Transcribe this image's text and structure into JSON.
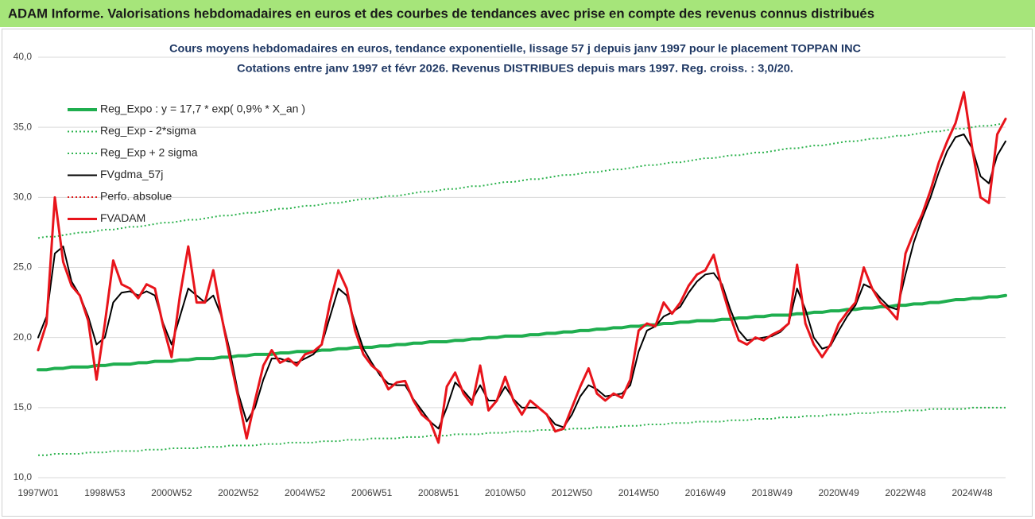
{
  "chart_data": {
    "type": "line",
    "title": "ADAM Informe. Valorisations hebdomadaires en euros et des courbes de tendances avec prise en compte des revenus connus distribués",
    "subtitle": [
      "Cours moyens hebdomadaires en euros, tendance exponentielle, lissage 57 j depuis janv 1997 pour le placement TOPPAN INC",
      "Cotations entre janv 1997 et févr 2026. Revenus DISTRIBUES depuis mars 1997. Reg. croiss. : 3,0/20."
    ],
    "categories": [
      "1997W01",
      null,
      null,
      null,
      null,
      null,
      null,
      null,
      "1998W53",
      null,
      null,
      null,
      null,
      null,
      null,
      null,
      "2000W52",
      null,
      null,
      null,
      null,
      null,
      null,
      null,
      "2002W52",
      null,
      null,
      null,
      null,
      null,
      null,
      null,
      "2004W52",
      null,
      null,
      null,
      null,
      null,
      null,
      null,
      "2006W51",
      null,
      null,
      null,
      null,
      null,
      null,
      null,
      "2008W51",
      null,
      null,
      null,
      null,
      null,
      null,
      null,
      "2010W50",
      null,
      null,
      null,
      null,
      null,
      null,
      null,
      "2012W50",
      null,
      null,
      null,
      null,
      null,
      null,
      null,
      "2014W50",
      null,
      null,
      null,
      null,
      null,
      null,
      null,
      "2016W49",
      null,
      null,
      null,
      null,
      null,
      null,
      null,
      "2018W49",
      null,
      null,
      null,
      null,
      null,
      null,
      null,
      "2020W49",
      null,
      null,
      null,
      null,
      null,
      null,
      null,
      "2022W48",
      null,
      null,
      null,
      null,
      null,
      null,
      null,
      "2024W48",
      null,
      null,
      null,
      null
    ],
    "ylim": [
      10,
      40
    ],
    "yticks": [
      {
        "value": 10,
        "label": "10,0"
      },
      {
        "value": 15,
        "label": "15,0"
      },
      {
        "value": 20,
        "label": "20,0"
      },
      {
        "value": 25,
        "label": "25,0"
      },
      {
        "value": 30,
        "label": "30,0"
      },
      {
        "value": 35,
        "label": "35,0"
      },
      {
        "value": 40,
        "label": "40,0"
      }
    ],
    "grid": true,
    "legend": "upper left",
    "series": [
      {
        "name": "Reg_Expo : y = 17,7 * exp( 0,9% *  X_an )",
        "color": "#1fae4f",
        "dash": "solid",
        "width": 4,
        "values": [
          17.7,
          17.7,
          17.8,
          17.8,
          17.9,
          17.9,
          17.9,
          18.0,
          18.0,
          18.1,
          18.1,
          18.1,
          18.2,
          18.2,
          18.3,
          18.3,
          18.3,
          18.4,
          18.4,
          18.5,
          18.5,
          18.5,
          18.6,
          18.6,
          18.7,
          18.7,
          18.8,
          18.8,
          18.8,
          18.9,
          18.9,
          19.0,
          19.0,
          19.0,
          19.1,
          19.1,
          19.2,
          19.2,
          19.3,
          19.3,
          19.3,
          19.4,
          19.4,
          19.5,
          19.5,
          19.6,
          19.6,
          19.7,
          19.7,
          19.7,
          19.8,
          19.8,
          19.9,
          19.9,
          20.0,
          20.0,
          20.1,
          20.1,
          20.1,
          20.2,
          20.2,
          20.3,
          20.3,
          20.4,
          20.4,
          20.5,
          20.5,
          20.6,
          20.6,
          20.7,
          20.7,
          20.8,
          20.8,
          20.9,
          20.9,
          21.0,
          21.0,
          21.1,
          21.1,
          21.2,
          21.2,
          21.2,
          21.3,
          21.3,
          21.4,
          21.4,
          21.5,
          21.5,
          21.6,
          21.6,
          21.6,
          21.7,
          21.7,
          21.8,
          21.8,
          21.9,
          21.9,
          22.0,
          22.0,
          22.1,
          22.1,
          22.2,
          22.2,
          22.3,
          22.3,
          22.4,
          22.4,
          22.5,
          22.5,
          22.6,
          22.7,
          22.7,
          22.8,
          22.8,
          22.9,
          22.9,
          23.0
        ]
      },
      {
        "name": "Reg_Exp - 2*sigma",
        "color": "#2eb34f",
        "dash": "dotted",
        "width": 2,
        "values": [
          11.6,
          11.6,
          11.7,
          11.7,
          11.7,
          11.7,
          11.8,
          11.8,
          11.8,
          11.9,
          11.9,
          11.9,
          11.9,
          12.0,
          12.0,
          12.0,
          12.1,
          12.1,
          12.1,
          12.1,
          12.2,
          12.2,
          12.2,
          12.3,
          12.3,
          12.3,
          12.3,
          12.4,
          12.4,
          12.4,
          12.5,
          12.5,
          12.5,
          12.5,
          12.6,
          12.6,
          12.6,
          12.7,
          12.7,
          12.7,
          12.8,
          12.8,
          12.8,
          12.8,
          12.9,
          12.9,
          12.9,
          13.0,
          13.0,
          13.0,
          13.1,
          13.1,
          13.1,
          13.1,
          13.2,
          13.2,
          13.2,
          13.3,
          13.3,
          13.3,
          13.4,
          13.4,
          13.4,
          13.4,
          13.5,
          13.5,
          13.5,
          13.6,
          13.6,
          13.6,
          13.7,
          13.7,
          13.7,
          13.8,
          13.8,
          13.8,
          13.9,
          13.9,
          13.9,
          14.0,
          14.0,
          14.0,
          14.0,
          14.1,
          14.1,
          14.1,
          14.2,
          14.2,
          14.2,
          14.3,
          14.3,
          14.3,
          14.4,
          14.4,
          14.4,
          14.5,
          14.5,
          14.5,
          14.6,
          14.6,
          14.6,
          14.7,
          14.7,
          14.7,
          14.8,
          14.8,
          14.8,
          14.9,
          14.9,
          14.9,
          14.9,
          14.9,
          15.0,
          15.0,
          15.0,
          15.0,
          15.0
        ]
      },
      {
        "name": "Reg_Exp + 2 sigma",
        "color": "#2eb34f",
        "dash": "dotted",
        "width": 2,
        "values": [
          27.1,
          27.2,
          27.2,
          27.3,
          27.4,
          27.5,
          27.5,
          27.6,
          27.7,
          27.7,
          27.8,
          27.9,
          27.9,
          28.0,
          28.1,
          28.2,
          28.2,
          28.3,
          28.4,
          28.4,
          28.5,
          28.6,
          28.7,
          28.7,
          28.8,
          28.9,
          28.9,
          29.0,
          29.1,
          29.2,
          29.2,
          29.3,
          29.4,
          29.4,
          29.5,
          29.6,
          29.6,
          29.7,
          29.8,
          29.9,
          29.9,
          30.0,
          30.1,
          30.1,
          30.2,
          30.3,
          30.4,
          30.4,
          30.5,
          30.6,
          30.6,
          30.7,
          30.8,
          30.8,
          30.9,
          31.0,
          31.1,
          31.1,
          31.2,
          31.3,
          31.3,
          31.4,
          31.5,
          31.6,
          31.6,
          31.7,
          31.8,
          31.8,
          31.9,
          32.0,
          32.0,
          32.1,
          32.2,
          32.3,
          32.3,
          32.4,
          32.5,
          32.5,
          32.6,
          32.7,
          32.8,
          32.8,
          32.9,
          33.0,
          33.0,
          33.1,
          33.2,
          33.2,
          33.3,
          33.4,
          33.5,
          33.5,
          33.6,
          33.7,
          33.7,
          33.8,
          33.9,
          34.0,
          34.0,
          34.1,
          34.2,
          34.2,
          34.3,
          34.4,
          34.4,
          34.5,
          34.6,
          34.7,
          34.7,
          34.8,
          34.9,
          34.9,
          35.0,
          35.1,
          35.1,
          35.2,
          35.3
        ]
      },
      {
        "name": "FVgdma_57j",
        "color": "#000000",
        "dash": "solid",
        "width": 2,
        "values": [
          20.0,
          21.5,
          26.0,
          26.5,
          24.0,
          23.0,
          21.5,
          19.5,
          20.0,
          22.5,
          23.2,
          23.3,
          23.0,
          23.3,
          23.0,
          21.0,
          19.5,
          21.5,
          23.5,
          23.0,
          22.5,
          23.0,
          21.5,
          19.0,
          16.0,
          14.0,
          15.0,
          17.0,
          18.5,
          18.5,
          18.3,
          18.2,
          18.5,
          18.8,
          19.5,
          21.5,
          23.5,
          23.0,
          21.0,
          19.2,
          18.2,
          17.3,
          16.7,
          16.6,
          16.6,
          15.6,
          14.8,
          14.0,
          13.5,
          15.0,
          16.8,
          16.2,
          15.5,
          16.6,
          15.5,
          15.5,
          16.5,
          15.6,
          15.0,
          15.0,
          15.0,
          14.5,
          13.8,
          13.6,
          14.5,
          15.8,
          16.6,
          16.3,
          15.8,
          15.9,
          16.0,
          16.6,
          19.0,
          20.5,
          20.8,
          21.5,
          21.8,
          22.2,
          23.2,
          24.0,
          24.5,
          24.6,
          23.8,
          22.0,
          20.5,
          19.8,
          19.9,
          20.0,
          20.1,
          20.4,
          21.0,
          23.5,
          22.0,
          20.0,
          19.2,
          19.4,
          20.5,
          21.5,
          22.3,
          23.8,
          23.5,
          22.8,
          22.2,
          22.0,
          24.5,
          26.8,
          28.5,
          30.0,
          31.8,
          33.3,
          34.3,
          34.5,
          33.5,
          31.5,
          31.0,
          33.0,
          34.0
        ]
      },
      {
        "name": "Perfo. absolue",
        "color": "#e02020",
        "dash": "dotted",
        "width": 2,
        "values": [
          null,
          null,
          null,
          null,
          null,
          null,
          null,
          null,
          null,
          null,
          null,
          null,
          null,
          null,
          null,
          null,
          null,
          null,
          null,
          null,
          null,
          null,
          null,
          null,
          null,
          null,
          null,
          null,
          null,
          null,
          null,
          null,
          null,
          null,
          null,
          null,
          null,
          null,
          null,
          null,
          null,
          null,
          null,
          null,
          null,
          null,
          null,
          null,
          null,
          null,
          null,
          null,
          null,
          null,
          null,
          null,
          null,
          null,
          null,
          null,
          null,
          null,
          null,
          null,
          null,
          null,
          null,
          null,
          null,
          null,
          null,
          null,
          null,
          null,
          null,
          null,
          null,
          null,
          null,
          null,
          null,
          null,
          null,
          null,
          null,
          null,
          null,
          null,
          null,
          null,
          null,
          null,
          null,
          null,
          null,
          null,
          null,
          null,
          null,
          null,
          null,
          null,
          null,
          null,
          null,
          null,
          null,
          null,
          null,
          null,
          null,
          null,
          null,
          null,
          null,
          null,
          null
        ]
      },
      {
        "name": "FVADAM",
        "color": "#e8141b",
        "dash": "solid",
        "width": 3,
        "values": [
          19.1,
          21.0,
          30.0,
          25.4,
          23.7,
          23.0,
          21.2,
          17.0,
          21.0,
          25.5,
          23.8,
          23.5,
          22.8,
          23.8,
          23.5,
          20.8,
          18.6,
          23.0,
          26.5,
          22.5,
          22.5,
          24.8,
          21.5,
          18.5,
          15.7,
          12.8,
          15.5,
          18.0,
          19.1,
          18.2,
          18.5,
          18.0,
          18.8,
          19.0,
          19.5,
          22.5,
          24.8,
          23.5,
          20.5,
          18.8,
          18.0,
          17.5,
          16.3,
          16.8,
          16.9,
          15.5,
          14.5,
          14.0,
          12.5,
          16.5,
          17.5,
          16.0,
          15.2,
          18.0,
          14.8,
          15.5,
          17.2,
          15.5,
          14.5,
          15.5,
          15.0,
          14.5,
          13.3,
          13.5,
          15.0,
          16.5,
          17.8,
          16.0,
          15.5,
          16.0,
          15.7,
          17.0,
          20.5,
          21.0,
          20.8,
          22.5,
          21.7,
          22.5,
          23.7,
          24.5,
          24.8,
          25.9,
          23.5,
          21.5,
          19.8,
          19.5,
          20.0,
          19.8,
          20.2,
          20.5,
          21.0,
          25.2,
          21.0,
          19.5,
          18.6,
          19.5,
          21.0,
          21.8,
          22.5,
          25.0,
          23.5,
          22.5,
          22.0,
          21.3,
          26.0,
          27.5,
          28.8,
          30.5,
          32.5,
          34.0,
          35.3,
          37.5,
          33.5,
          30.0,
          29.6,
          34.5,
          35.6
        ]
      }
    ]
  }
}
